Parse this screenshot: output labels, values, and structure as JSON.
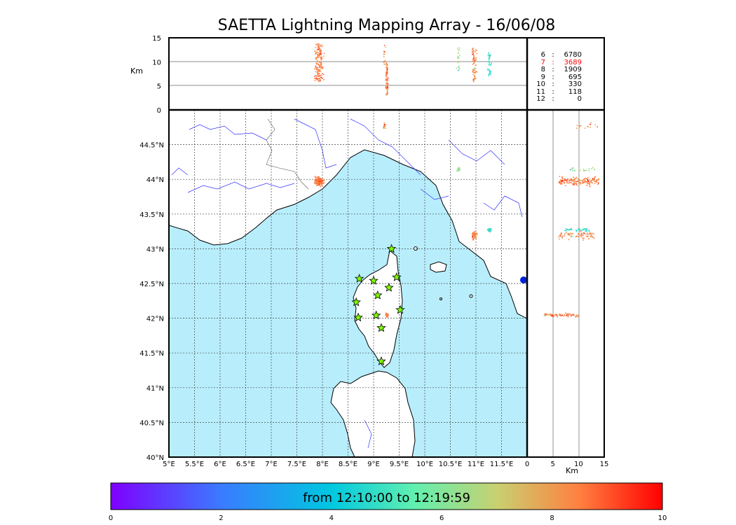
{
  "title": "SAETTA Lightning Mapping Array - 16/06/08",
  "top_panel": {
    "ylabel": "Km",
    "yticks": [
      "15",
      "10",
      "5",
      "0"
    ],
    "ylim": [
      0,
      15
    ]
  },
  "right_panel": {
    "xlabel": "Km",
    "xticks": [
      "0",
      "5",
      "10",
      "15"
    ],
    "xlim": [
      0,
      15
    ]
  },
  "map": {
    "lon_ticks": [
      "5°E",
      "5.5°E",
      "6°E",
      "6.5°E",
      "7°E",
      "7.5°E",
      "8°E",
      "8.5°E",
      "9°E",
      "9.5°E",
      "10°E",
      "10.5°E",
      "11°E",
      "11.5°E"
    ],
    "lat_ticks": [
      "44.5°N",
      "44°N",
      "43.5°N",
      "43°N",
      "42.5°N",
      "42°N",
      "41.5°N",
      "41°N",
      "40.5°N",
      "40°N"
    ],
    "lon_range": [
      5,
      12
    ],
    "lat_range": [
      40,
      45
    ],
    "sea_color": "#b8eefc",
    "land_color": "#ffffff",
    "river_color": "#3333ff",
    "station_color": "#7fff00"
  },
  "station_counts": [
    {
      "n": "6",
      "sep": ":",
      "count": "6780",
      "color": "#000000"
    },
    {
      "n": "7",
      "sep": ":",
      "count": "3689",
      "color": "#ff0000"
    },
    {
      "n": "8",
      "sep": ":",
      "count": "1909",
      "color": "#000000"
    },
    {
      "n": "9",
      "sep": ":",
      "count": "695",
      "color": "#000000"
    },
    {
      "n": "10",
      "sep": ":",
      "count": "330",
      "color": "#000000"
    },
    {
      "n": "11",
      "sep": ":",
      "count": "118",
      "color": "#000000"
    },
    {
      "n": "12",
      "sep": ":",
      "count": "0",
      "color": "#000000"
    }
  ],
  "colorbar": {
    "label": "from 12:10:00 to 12:19:59",
    "ticks": [
      "0",
      "2",
      "4",
      "6",
      "8",
      "10"
    ],
    "range": [
      0,
      10
    ]
  },
  "chart_data": {
    "type": "scatter",
    "title": "SAETTA Lightning Mapping Array - 16/06/08",
    "stations": [
      {
        "lon": 9.35,
        "lat": 43.0
      },
      {
        "lon": 8.72,
        "lat": 42.57
      },
      {
        "lon": 9.0,
        "lat": 42.54
      },
      {
        "lon": 9.45,
        "lat": 42.59
      },
      {
        "lon": 9.3,
        "lat": 42.44
      },
      {
        "lon": 9.08,
        "lat": 42.33
      },
      {
        "lon": 8.66,
        "lat": 42.23
      },
      {
        "lon": 9.52,
        "lat": 42.12
      },
      {
        "lon": 9.05,
        "lat": 42.04
      },
      {
        "lon": 8.7,
        "lat": 42.01
      },
      {
        "lon": 9.15,
        "lat": 41.86
      },
      {
        "lon": 9.15,
        "lat": 41.38
      }
    ],
    "clusters": [
      {
        "lon": 7.92,
        "lat": 43.98,
        "dlon": 0.12,
        "dlat": 0.08,
        "z": [
          6,
          14
        ],
        "n": 160,
        "time": 8.5
      },
      {
        "lon": 9.25,
        "lat": 42.05,
        "dlon": 0.03,
        "dlat": 0.04,
        "z": [
          3,
          10
        ],
        "n": 70,
        "time": 8.7
      },
      {
        "lon": 10.95,
        "lat": 43.2,
        "dlon": 0.08,
        "dlat": 0.08,
        "z": [
          6,
          13
        ],
        "n": 70,
        "time": 8.4
      },
      {
        "lon": 11.25,
        "lat": 43.28,
        "dlon": 0.06,
        "dlat": 0.04,
        "z": [
          7,
          12
        ],
        "n": 40,
        "time": 4.6
      },
      {
        "lon": 10.65,
        "lat": 44.15,
        "dlon": 0.05,
        "dlat": 0.04,
        "z": [
          8,
          13
        ],
        "n": 20,
        "time": 6.4
      },
      {
        "lon": 9.2,
        "lat": 44.78,
        "dlon": 0.03,
        "dlat": 0.08,
        "z": [
          9,
          14
        ],
        "n": 15,
        "time": 8.0
      }
    ]
  }
}
